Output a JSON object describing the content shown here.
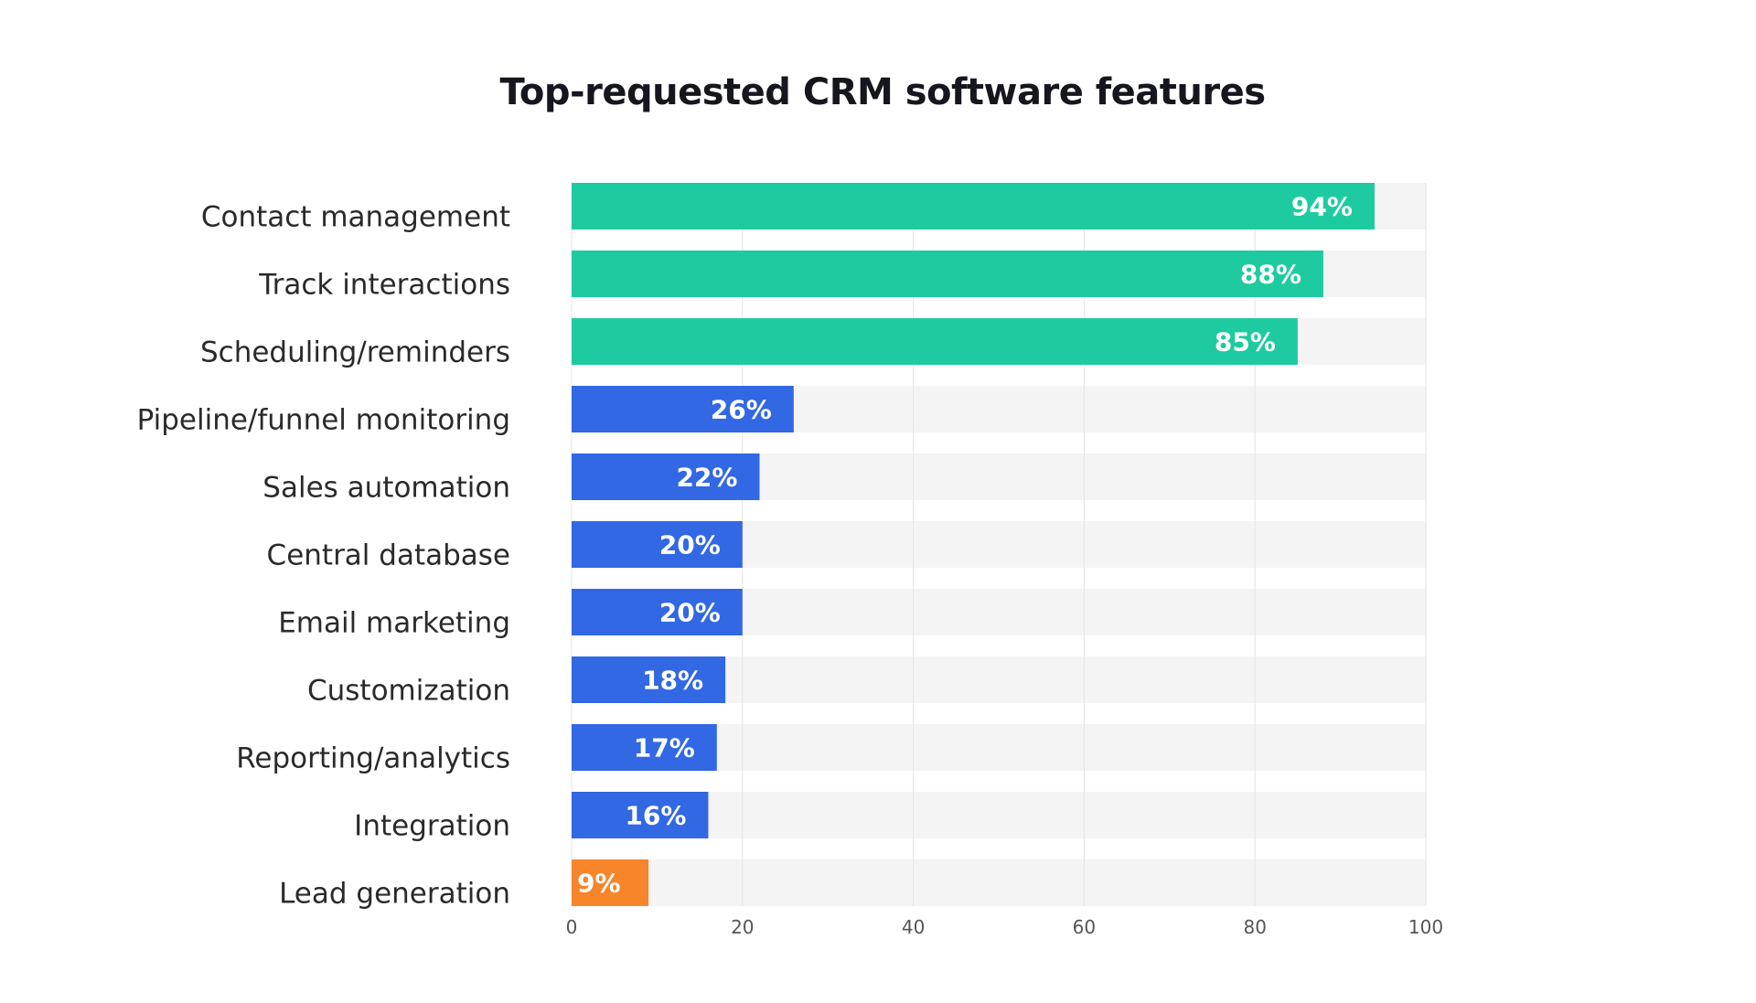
{
  "chart_data": {
    "type": "bar",
    "orientation": "horizontal",
    "title": "Top-requested CRM software features",
    "categories": [
      "Contact management",
      "Track interactions",
      "Scheduling/reminders",
      "Pipeline/funnel monitoring",
      "Sales automation",
      "Central database",
      "Email marketing",
      "Customization",
      "Reporting/analytics",
      "Integration",
      "Lead generation"
    ],
    "values": [
      94,
      88,
      85,
      26,
      22,
      20,
      20,
      18,
      17,
      16,
      9
    ],
    "data_labels": [
      "94%",
      "88%",
      "85%",
      "26%",
      "22%",
      "20%",
      "20%",
      "18%",
      "17%",
      "16%",
      "9%"
    ],
    "bar_colors": [
      "#1ecba0",
      "#1ecba0",
      "#1ecba0",
      "#3268e3",
      "#3268e3",
      "#3268e3",
      "#3268e3",
      "#3268e3",
      "#3268e3",
      "#3268e3",
      "#f7852a"
    ],
    "track_color": "#f4f4f4",
    "xlim": [
      0,
      100
    ],
    "xticks": [
      "0",
      "20",
      "40",
      "60",
      "80",
      "100"
    ],
    "xlabel": "",
    "ylabel": "",
    "grid": true,
    "legend": "none"
  }
}
